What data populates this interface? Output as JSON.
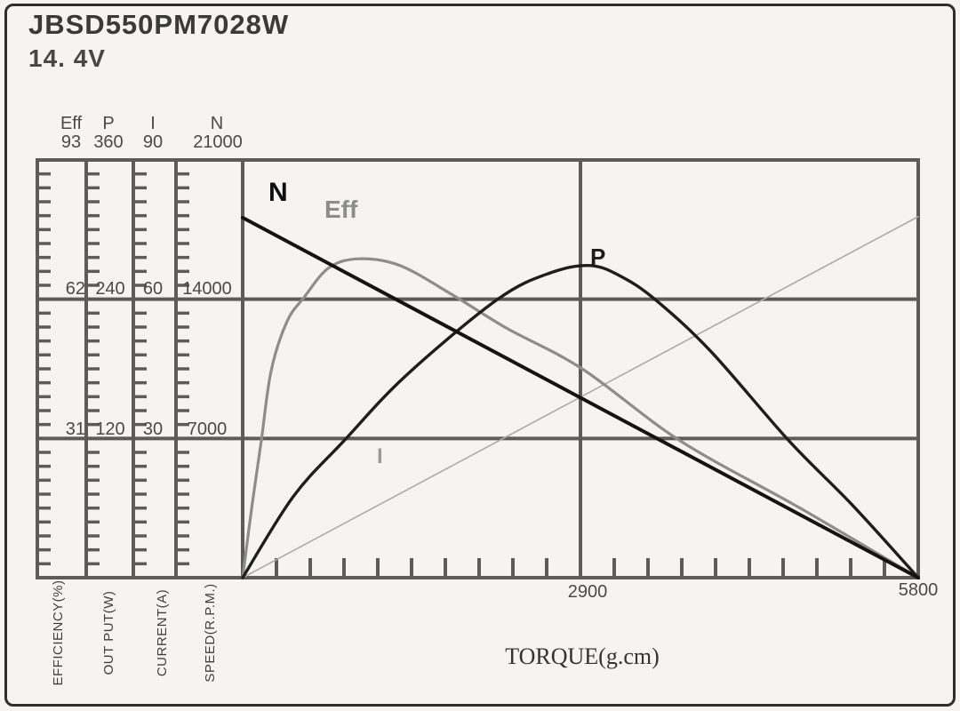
{
  "header": {
    "title": "JBSD550PM7028W",
    "voltage": "14. 4V"
  },
  "chart_data": {
    "type": "line",
    "title": "JBSD550PM7028W",
    "subtitle": "14. 4V",
    "xlabel": "TORQUE(g.cm)",
    "x_range": [
      0,
      5800
    ],
    "x_major_ticks": [
      2900,
      5800
    ],
    "x_major_tick_labels": [
      "2900",
      "5800"
    ],
    "x_minor_tick_step": 290,
    "grid_on": true,
    "grid_color": "#5c5c5c",
    "axes": [
      {
        "id": "Eff",
        "header": "Eff",
        "unit_label": "EFFICIENCY(%)",
        "max": 93,
        "tick_labels": [
          "93",
          "62",
          "31"
        ]
      },
      {
        "id": "P",
        "header": "P",
        "unit_label": "OUT PUT(W)",
        "max": 360,
        "tick_labels": [
          "360",
          "240",
          "120"
        ]
      },
      {
        "id": "I",
        "header": "I",
        "unit_label": "CURRENT(A)",
        "max": 90,
        "tick_labels": [
          "90",
          "60",
          "30"
        ]
      },
      {
        "id": "N",
        "header": "N",
        "unit_label": "SPEED(R.P.M.)",
        "max": 21000,
        "tick_labels": [
          "21000",
          "14000",
          "7000"
        ]
      }
    ],
    "series": [
      {
        "name": "current",
        "label": "I",
        "axis": "I",
        "color": "#ababab",
        "width": 1.6,
        "points": [
          [
            0,
            0
          ],
          [
            5800,
            77.8
          ]
        ]
      },
      {
        "name": "efficiency",
        "label": "Eff",
        "axis": "Eff",
        "color": "#8d8d8d",
        "width": 3.2,
        "points": [
          [
            0,
            0
          ],
          [
            80,
            16
          ],
          [
            160,
            30.5
          ],
          [
            244,
            46
          ],
          [
            380,
            57
          ],
          [
            530,
            62.5
          ],
          [
            740,
            69
          ],
          [
            1000,
            71
          ],
          [
            1350,
            69.5
          ],
          [
            1800,
            63
          ],
          [
            2270,
            55.5
          ],
          [
            2915,
            46.5
          ],
          [
            3755,
            30.5
          ],
          [
            4785,
            15.5
          ],
          [
            5800,
            0
          ]
        ]
      },
      {
        "name": "output-power",
        "label": "P",
        "axis": "P",
        "color": "#1e1e1e",
        "width": 3.4,
        "points": [
          [
            0,
            0
          ],
          [
            435,
            70
          ],
          [
            870,
            118
          ],
          [
            1400,
            174
          ],
          [
            2190,
            240
          ],
          [
            2650,
            263
          ],
          [
            2990,
            269
          ],
          [
            3260,
            259
          ],
          [
            3550,
            239
          ],
          [
            4020,
            195
          ],
          [
            4690,
            118
          ],
          [
            5240,
            62
          ],
          [
            5800,
            0
          ]
        ]
      },
      {
        "name": "speed",
        "label": "N",
        "axis": "N",
        "color": "#141414",
        "width": 4,
        "points": [
          [
            0,
            18100
          ],
          [
            5800,
            0
          ]
        ]
      }
    ]
  }
}
